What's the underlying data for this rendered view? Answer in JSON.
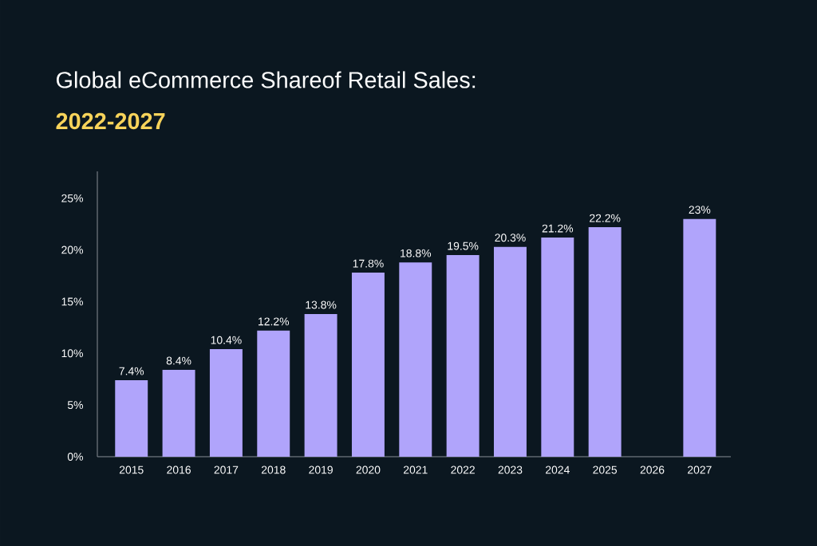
{
  "chart_data": {
    "type": "bar",
    "title": "Global eCommerce Shareof Retail Sales:",
    "subtitle": "2022-2027",
    "categories": [
      "2015",
      "2016",
      "2017",
      "2018",
      "2019",
      "2020",
      "2021",
      "2022",
      "2023",
      "2024",
      "2025",
      "2026",
      "2027"
    ],
    "values": [
      7.4,
      8.4,
      10.4,
      12.2,
      13.8,
      17.8,
      18.8,
      19.5,
      20.3,
      21.2,
      22.2,
      null,
      23
    ],
    "value_labels": [
      "7.4%",
      "8.4%",
      "10.4%",
      "12.2%",
      "13.8%",
      "17.8%",
      "18.8%",
      "19.5%",
      "20.3%",
      "21.2%",
      "22.2%",
      null,
      "23%"
    ],
    "color": "#b0a4fb",
    "ylim": [
      0,
      27.6
    ],
    "yticks": [
      {
        "value": 0,
        "label": "0%"
      },
      {
        "value": 5,
        "label": "5%"
      },
      {
        "value": 10,
        "label": "10%"
      },
      {
        "value": 15,
        "label": "15%"
      },
      {
        "value": 20,
        "label": "20%"
      },
      {
        "value": 25,
        "label": "25%"
      }
    ]
  }
}
